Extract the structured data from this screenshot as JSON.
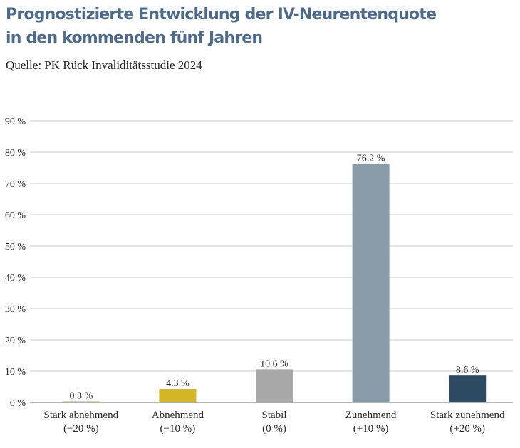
{
  "title_line1": "Prognostizierte Entwicklung der IV-Neurentenquote",
  "title_line2": "in den kommenden fünf Jahren",
  "source": "Quelle: PK Rück Invaliditätsstudie 2024",
  "chart_data": {
    "type": "bar",
    "categories": [
      [
        "Stark abnehmend",
        "(−20 %)"
      ],
      [
        "Abnehmend",
        "(−10 %)"
      ],
      [
        "Stabil",
        "(0 %)"
      ],
      [
        "Zunehmend",
        "(+10 %)"
      ],
      [
        "Stark zunehmend",
        "(+20 %)"
      ]
    ],
    "values": [
      0.3,
      4.3,
      10.6,
      76.2,
      8.6
    ],
    "value_labels": [
      "0.3 %",
      "4.3 %",
      "10.6 %",
      "76.2 %",
      "8.6 %"
    ],
    "colors": [
      "#6a7a3a",
      "#d4b52a",
      "#a8a8a8",
      "#8a9baa",
      "#2d4a60"
    ],
    "ylim": [
      0,
      90
    ],
    "yticks": [
      0,
      10,
      20,
      30,
      40,
      50,
      60,
      70,
      80,
      90
    ],
    "ytick_labels": [
      "0 %",
      "10 %",
      "20 %",
      "30 %",
      "40 %",
      "50 %",
      "60 %",
      "70 %",
      "80 %",
      "90 %"
    ],
    "grid": true,
    "title": "Prognostizierte Entwicklung der IV-Neurentenquote in den kommenden fünf Jahren",
    "xlabel": "",
    "ylabel": ""
  }
}
